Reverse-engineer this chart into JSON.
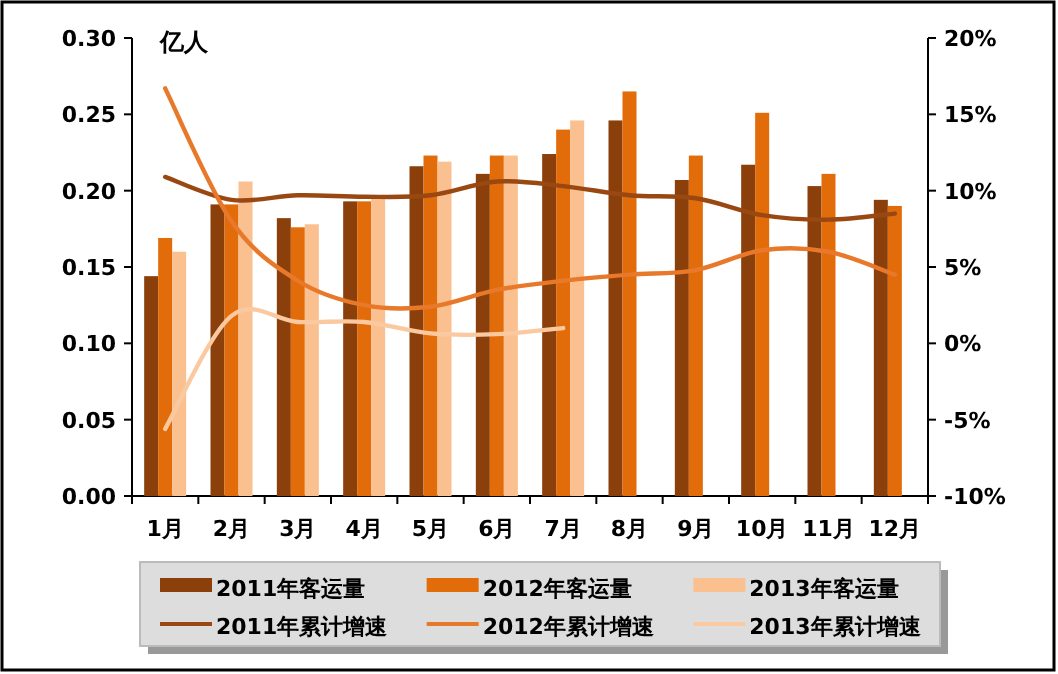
{
  "chart_data": {
    "type": "bar",
    "ylabel": "亿人",
    "categories": [
      "1月",
      "2月",
      "3月",
      "4月",
      "5月",
      "6月",
      "7月",
      "8月",
      "9月",
      "10月",
      "11月",
      "12月"
    ],
    "series": [
      {
        "name": "2011年客运量",
        "color": "#8b3f0a",
        "values": [
          0.144,
          0.191,
          0.182,
          0.193,
          0.216,
          0.211,
          0.224,
          0.246,
          0.207,
          0.217,
          0.203,
          0.194
        ]
      },
      {
        "name": "2012年客运量",
        "color": "#e26b0a",
        "values": [
          0.169,
          0.191,
          0.176,
          0.193,
          0.223,
          0.223,
          0.24,
          0.265,
          0.223,
          0.251,
          0.211,
          0.19
        ]
      },
      {
        "name": "2013年客运量",
        "color": "#fac090",
        "values": [
          0.16,
          0.206,
          0.178,
          0.196,
          0.219,
          0.223,
          0.246,
          null,
          null,
          null,
          null,
          null
        ]
      },
      {
        "name": "2011年累计增速",
        "type": "line",
        "axis": "y2",
        "color": "#9a4812",
        "values": [
          10.9,
          9.4,
          9.7,
          9.6,
          9.7,
          10.6,
          10.3,
          9.7,
          9.5,
          8.4,
          8.1,
          8.5
        ]
      },
      {
        "name": "2012年累计增速",
        "type": "line",
        "axis": "y2",
        "color": "#e8782a",
        "values": [
          16.7,
          8.0,
          4.1,
          2.5,
          2.4,
          3.5,
          4.1,
          4.5,
          4.8,
          6.1,
          6.0,
          4.5
        ]
      },
      {
        "name": "2013年累计增速",
        "type": "line",
        "axis": "y2",
        "color": "#fbc9a0",
        "values": [
          -5.6,
          1.8,
          1.4,
          1.4,
          0.65,
          0.6,
          1.0,
          null,
          null,
          null,
          null,
          null
        ]
      }
    ],
    "ylim": [
      0,
      0.3
    ],
    "yticks": [
      {
        "value": 0,
        "label": "0.00"
      },
      {
        "value": 0.05,
        "label": "0.05"
      },
      {
        "value": 0.1,
        "label": "0.10"
      },
      {
        "value": 0.15,
        "label": "0.15"
      },
      {
        "value": 0.2,
        "label": "0.20"
      },
      {
        "value": 0.25,
        "label": "0.25"
      },
      {
        "value": 0.3,
        "label": "0.30"
      }
    ],
    "y2lim": [
      -10,
      20
    ],
    "y2ticks": [
      {
        "value": -10,
        "label": "-10%"
      },
      {
        "value": -5,
        "label": "-5%"
      },
      {
        "value": 0,
        "label": "0%"
      },
      {
        "value": 5,
        "label": "5%"
      },
      {
        "value": 10,
        "label": "10%"
      },
      {
        "value": 15,
        "label": "15%"
      },
      {
        "value": 20,
        "label": "20%"
      }
    ],
    "legend": "bottom",
    "grid": false
  }
}
